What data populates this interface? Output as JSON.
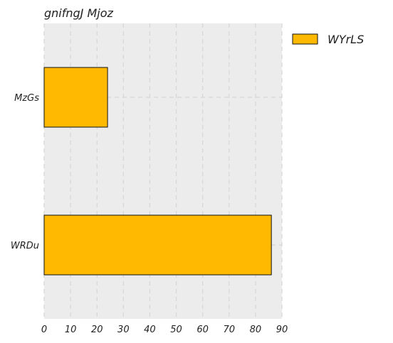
{
  "colors": {
    "panel_background": "#ececec",
    "grid": "#d6d6d6",
    "bar_fill": "#ffb900",
    "bar_edge": "#111111"
  },
  "chart_data": {
    "type": "bar",
    "orientation": "horizontal",
    "title": "gnifngJ Mjoz",
    "categories": [
      "MzGs",
      "WRDu"
    ],
    "series": [
      {
        "name": "WYrLS",
        "values": [
          24,
          86
        ]
      }
    ],
    "xlim": [
      0,
      90
    ],
    "xticks": [
      "0",
      "10",
      "20",
      "30",
      "40",
      "50",
      "60",
      "70",
      "80",
      "90"
    ],
    "grid": true,
    "legend": "outside-top-right"
  }
}
